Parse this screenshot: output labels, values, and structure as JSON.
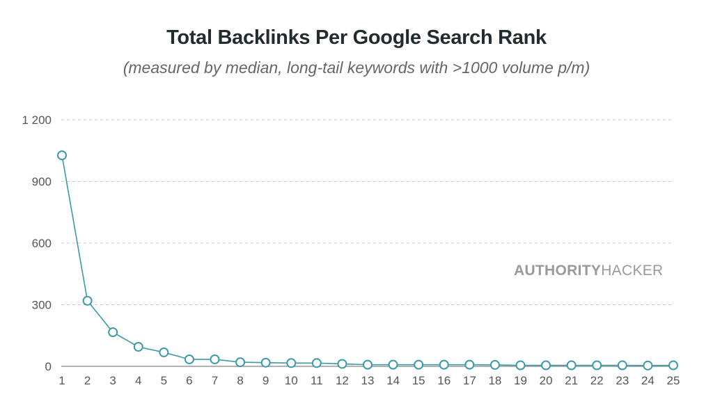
{
  "chart_data": {
    "type": "line",
    "title": "Total Backlinks Per Google Search Rank",
    "subtitle": "(measured by median, long-tail keywords with >1000 volume p/m)",
    "xlabel": "",
    "ylabel": "",
    "x": [
      1,
      2,
      3,
      4,
      5,
      6,
      7,
      8,
      9,
      10,
      11,
      12,
      13,
      14,
      15,
      16,
      17,
      18,
      19,
      20,
      21,
      22,
      23,
      24,
      25
    ],
    "x_tick_labels": [
      "1",
      "2",
      "3",
      "4",
      "5",
      "6",
      "7",
      "8",
      "9",
      "10",
      "11",
      "12",
      "13",
      "14",
      "15",
      "16",
      "17",
      "18",
      "19",
      "20",
      "21",
      "22",
      "23",
      "24",
      "25"
    ],
    "series": [
      {
        "name": "Total Backlinks",
        "color": "#3a9aa8",
        "values": [
          1027,
          319,
          166,
          95,
          68,
          34,
          34,
          20,
          18,
          16,
          16,
          12,
          8,
          8,
          8,
          8,
          8,
          7,
          5,
          5,
          5,
          5,
          5,
          4,
          5
        ]
      }
    ],
    "ylim": [
      0,
      1200
    ],
    "y_ticks": [
      0,
      300,
      600,
      900,
      1200
    ],
    "y_tick_labels": [
      "0",
      "300",
      "600",
      "900",
      "1 200"
    ],
    "grid": true,
    "watermark": {
      "bold": "AUTHORITY",
      "regular": "HACKER"
    }
  }
}
